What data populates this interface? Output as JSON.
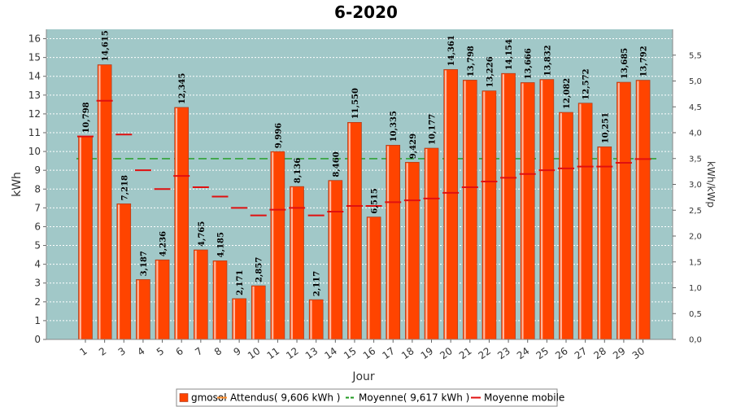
{
  "chart_data": {
    "type": "bar",
    "title": "6-2020",
    "xlabel": "Jour",
    "ylabel": "kWh",
    "y2label": "kWh/kWp",
    "ylim": [
      0,
      16.5
    ],
    "y2lim": [
      0,
      6.0
    ],
    "yticks": [
      0,
      1,
      2,
      3,
      4,
      5,
      6,
      7,
      8,
      9,
      10,
      11,
      12,
      13,
      14,
      15,
      16
    ],
    "y2ticks": [
      "0,0",
      "0,5",
      "1,0",
      "1,5",
      "2,0",
      "2,5",
      "3,0",
      "3,5",
      "4,0",
      "4,5",
      "5,0",
      "5,5"
    ],
    "categories": [
      "1",
      "2",
      "3",
      "4",
      "5",
      "6",
      "7",
      "8",
      "9",
      "10",
      "11",
      "12",
      "13",
      "14",
      "15",
      "16",
      "17",
      "18",
      "19",
      "20",
      "21",
      "22",
      "23",
      "24",
      "25",
      "26",
      "27",
      "28",
      "29",
      "30"
    ],
    "series": [
      {
        "name": "gmosol",
        "values": [
          10.798,
          14.615,
          7.218,
          3.187,
          4.236,
          12.345,
          4.765,
          4.185,
          2.171,
          2.857,
          9.996,
          8.136,
          2.117,
          8.46,
          11.55,
          6.515,
          10.335,
          9.429,
          10.177,
          14.361,
          13.798,
          13.226,
          14.154,
          13.666,
          13.832,
          12.082,
          12.572,
          10.251,
          13.685,
          13.792
        ],
        "labels": [
          "10,798",
          "14,615",
          "7,218",
          "3,187",
          "4,236",
          "12,345",
          "4,765",
          "4,185",
          "2,171",
          "2,857",
          "9,996",
          "8,136",
          "2,117",
          "8,460",
          "11,550",
          "6,515",
          "10,335",
          "9,429",
          "10,177",
          "14,361",
          "13,798",
          "13,226",
          "14,154",
          "13,666",
          "13,832",
          "12,082",
          "12,572",
          "10,251",
          "13,685",
          "13,792"
        ]
      },
      {
        "name": "Moyenne mobile",
        "values": [
          10.8,
          12.7,
          10.9,
          9.0,
          8.0,
          8.7,
          8.1,
          7.6,
          7.0,
          6.6,
          6.9,
          7.0,
          6.6,
          6.8,
          7.1,
          7.1,
          7.3,
          7.4,
          7.5,
          7.8,
          8.1,
          8.4,
          8.6,
          8.8,
          9.0,
          9.1,
          9.2,
          9.2,
          9.4,
          9.6
        ]
      }
    ],
    "reference_lines": [
      {
        "name": "Moyenne( 9,617 kWh )",
        "value": 9.617,
        "color": "#1e9a1e"
      }
    ],
    "legend": {
      "position": "bottom",
      "items": [
        {
          "label": "gmosol",
          "color": "#ff4400",
          "kind": "box"
        },
        {
          "label": "Attendus( 9,606 kWh )",
          "color": "#ff8c2a",
          "kind": "line"
        },
        {
          "label": "Moyenne( 9,617 kWh )",
          "color": "#1e9a1e",
          "kind": "dash"
        },
        {
          "label": "Moyenne mobile",
          "color": "#e01010",
          "kind": "line"
        }
      ]
    },
    "colors": {
      "plot_bg": "#a1c8c8",
      "bar": "#ff4400",
      "bar_shade": "#ffb8a0",
      "moving_avg": "#e01010",
      "average": "#1e9a1e"
    },
    "grid": true
  }
}
